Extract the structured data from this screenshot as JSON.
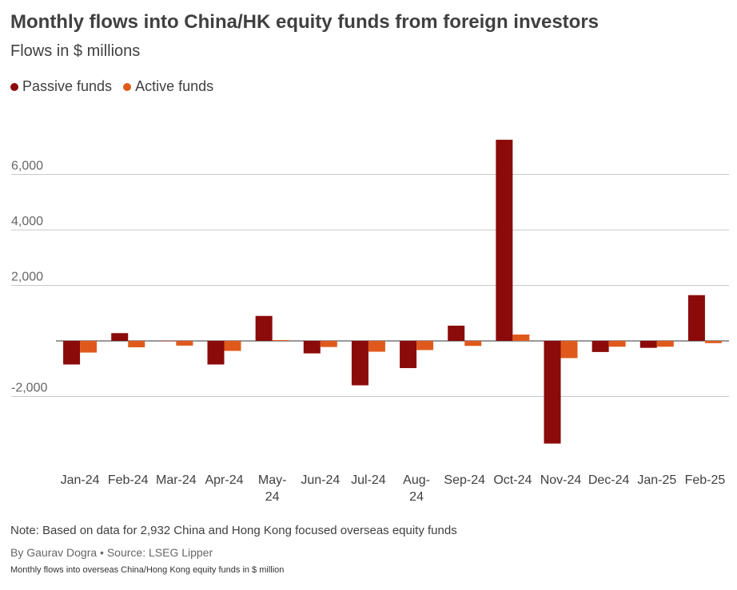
{
  "title": "Monthly flows into China/HK equity funds from foreign investors",
  "subtitle": "Flows in $ millions",
  "legend": [
    {
      "label": "Passive funds",
      "color": "#8b0a0a"
    },
    {
      "label": "Active funds",
      "color": "#e0591c"
    }
  ],
  "note": "Note: Based on data for 2,932 China and Hong Kong focused overseas equity funds",
  "byline": "By Gaurav Dogra • Source: LSEG Lipper",
  "caption": "Monthly flows into overseas China/Hong Kong equity funds in $ million",
  "chart_data": {
    "type": "bar",
    "title": "Monthly flows into China/HK equity funds from foreign investors",
    "subtitle": "Flows in $ millions",
    "xlabel": "",
    "ylabel": "",
    "categories": [
      "Jan-24",
      "Feb-24",
      "Mar-24",
      "Apr-24",
      "May-24",
      "Jun-24",
      "Jul-24",
      "Aug-24",
      "Sep-24",
      "Oct-24",
      "Nov-24",
      "Dec-24",
      "Jan-25",
      "Feb-25"
    ],
    "category_labels": [
      [
        "Jan-24"
      ],
      [
        "Feb-24"
      ],
      [
        "Mar-24"
      ],
      [
        "Apr-24"
      ],
      [
        "May-",
        "24"
      ],
      [
        "Jun-24"
      ],
      [
        "Jul-24"
      ],
      [
        "Aug-",
        "24"
      ],
      [
        "Sep-24"
      ],
      [
        "Oct-24"
      ],
      [
        "Nov-24"
      ],
      [
        "Dec-24"
      ],
      [
        "Jan-25"
      ],
      [
        "Feb-25"
      ]
    ],
    "series": [
      {
        "name": "Passive funds",
        "color": "#8b0a0a",
        "values": [
          -850,
          280,
          0,
          -850,
          900,
          -450,
          -1600,
          -980,
          550,
          7250,
          -3700,
          -400,
          -250,
          1650
        ]
      },
      {
        "name": "Active funds",
        "color": "#e0591c",
        "values": [
          -420,
          -230,
          -170,
          -360,
          30,
          -220,
          -390,
          -330,
          -180,
          230,
          -620,
          -210,
          -210,
          -80
        ]
      }
    ],
    "ylim": [
      -4000,
      7500
    ],
    "yticks": [
      -2000,
      2000,
      4000,
      6000
    ],
    "ytick_labels": [
      "-2,000",
      "2,000",
      "4,000",
      "6,000"
    ],
    "grid": true,
    "legend_position": "top-left"
  }
}
